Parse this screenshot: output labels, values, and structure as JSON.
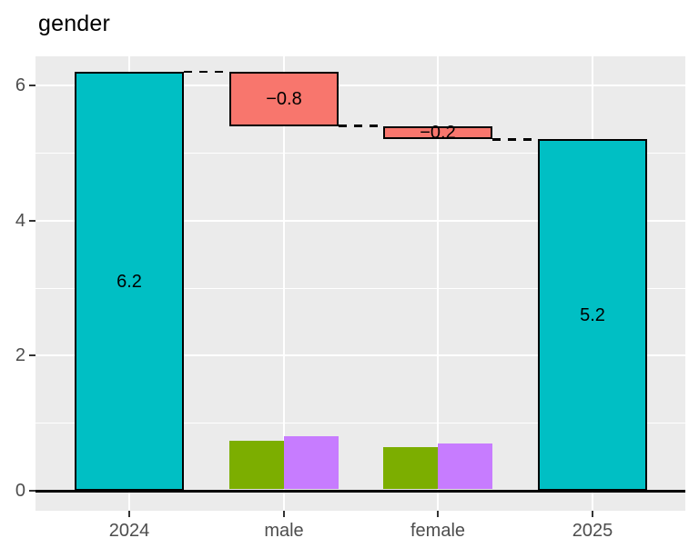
{
  "title": "gender",
  "chart_data": {
    "type": "bar",
    "subtype": "waterfall-with-grouped-bars",
    "title": "gender",
    "xlabel": "",
    "ylabel": "",
    "legend": "none",
    "grid": true,
    "categories": [
      "2024",
      "male",
      "female",
      "2025"
    ],
    "y_axis": {
      "ticks": [
        0,
        2,
        4,
        6
      ],
      "tick_labels": [
        "0",
        "2",
        "4",
        "6"
      ],
      "minor_ticks": [
        1,
        3,
        5
      ],
      "ylim": [
        -0.3,
        6.43
      ]
    },
    "waterfall": [
      {
        "category": "2024",
        "from": 0,
        "to": 6.2,
        "label": "6.2",
        "color": "#00BFC4"
      },
      {
        "category": "male",
        "from": 5.4,
        "to": 6.2,
        "label": "−0.8",
        "color": "#F8766D"
      },
      {
        "category": "female",
        "from": 5.2,
        "to": 5.4,
        "label": "−0.2",
        "color": "#F8766D"
      },
      {
        "category": "2025",
        "from": 0,
        "to": 5.2,
        "label": "5.2",
        "color": "#00BFC4"
      }
    ],
    "grouped_bars": [
      {
        "category": "male",
        "bars": [
          {
            "color": "#7CAE00",
            "value": 0.72
          },
          {
            "color": "#C77CFF",
            "value": 0.79
          }
        ]
      },
      {
        "category": "female",
        "bars": [
          {
            "color": "#7CAE00",
            "value": 0.63
          },
          {
            "color": "#C77CFF",
            "value": 0.68
          }
        ]
      }
    ],
    "connectors": [
      {
        "level": 6.2,
        "from_category": "2024",
        "to_category": "male"
      },
      {
        "level": 5.4,
        "from_category": "male",
        "to_category": "female"
      },
      {
        "level": 5.2,
        "from_category": "female",
        "to_category": "2025"
      }
    ],
    "style": {
      "panel_background": "#EBEBEB",
      "grid_color": "#FFFFFF",
      "baseline_color": "#000000",
      "bar_border_color": "#000000",
      "axis_text_color": "#4D4D4D",
      "tick_color": "#333333",
      "title_color": "#000000"
    }
  }
}
